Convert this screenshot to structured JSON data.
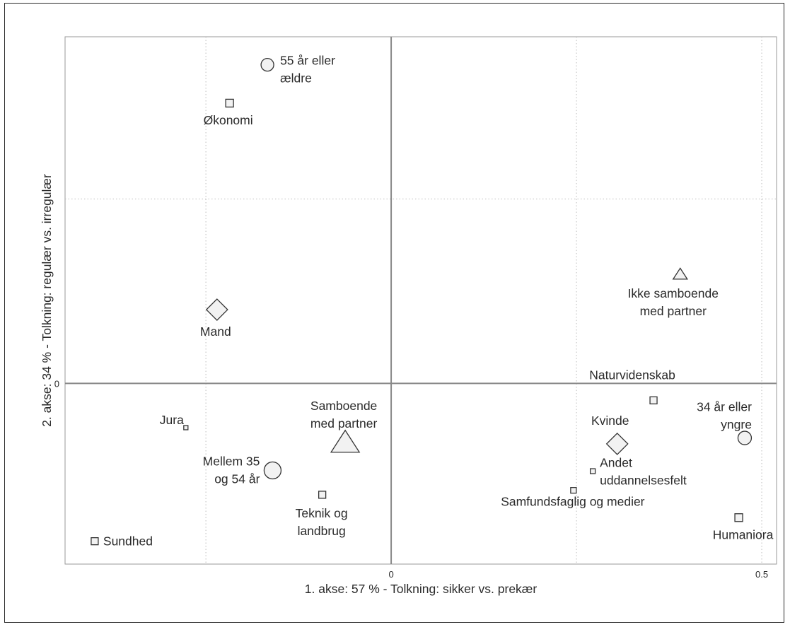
{
  "chart_data": {
    "type": "scatter",
    "xlabel": "1. akse: 57 % - Tolkning: sikker vs. prekær",
    "ylabel": "2. akse: 34 % - Tolkning: regulær vs. irregulær",
    "xlim": [
      -0.44,
      0.52
    ],
    "ylim": [
      -0.245,
      0.47
    ],
    "x_ticks": [
      {
        "value": 0,
        "label": "0"
      },
      {
        "value": 0.5,
        "label": "0.5"
      }
    ],
    "y_ticks": [
      {
        "value": 0,
        "label": "0"
      }
    ],
    "x_gridlines": [
      -0.25,
      0.25,
      0.5
    ],
    "y_gridlines": [
      0.25
    ],
    "grid": "dotted",
    "colors": {
      "marker_fill": "#f2f2f2",
      "marker_stroke": "#333333",
      "axis": "#888888",
      "grid": "#bbbbbb",
      "text": "#2a2a2a"
    },
    "points": [
      {
        "id": "p1",
        "label": [
          "55 år eller",
          "ældre"
        ],
        "shape": "circle",
        "size": 9,
        "x": -0.167,
        "y": 0.432
      },
      {
        "id": "p2",
        "label": [
          "Økonomi"
        ],
        "shape": "square",
        "size": 5.5,
        "x": -0.218,
        "y": 0.38
      },
      {
        "id": "p3",
        "label": [
          "Mand"
        ],
        "shape": "diamond",
        "size": 15,
        "x": -0.235,
        "y": 0.1
      },
      {
        "id": "p4",
        "label": [
          "Jura"
        ],
        "shape": "square",
        "size": 3,
        "x": -0.277,
        "y": -0.06
      },
      {
        "id": "p5",
        "label": [
          "Mellem 35",
          "og 54 år"
        ],
        "shape": "circle",
        "size": 12,
        "x": -0.16,
        "y": -0.118
      },
      {
        "id": "p6",
        "label": [
          "Samboende",
          "med partner"
        ],
        "shape": "triangle",
        "size": 20,
        "x": -0.062,
        "y": -0.082
      },
      {
        "id": "p7",
        "label": [
          "Teknik og",
          "landbrug"
        ],
        "shape": "square",
        "size": 5,
        "x": -0.093,
        "y": -0.151
      },
      {
        "id": "p8",
        "label": [
          "Sundhed"
        ],
        "shape": "square",
        "size": 5,
        "x": -0.4,
        "y": -0.214
      },
      {
        "id": "p9",
        "label": [
          "Ikke samboende",
          "med partner"
        ],
        "shape": "triangle",
        "size": 10,
        "x": 0.39,
        "y": 0.147
      },
      {
        "id": "p10",
        "label": [
          "Naturvidenskab"
        ],
        "shape": "square",
        "size": 5,
        "x": 0.354,
        "y": -0.023
      },
      {
        "id": "p11",
        "label": [
          "34 år eller",
          "yngre"
        ],
        "shape": "circle",
        "size": 9.5,
        "x": 0.477,
        "y": -0.074
      },
      {
        "id": "p12",
        "label": [
          "Kvinde"
        ],
        "shape": "diamond",
        "size": 15,
        "x": 0.305,
        "y": -0.082
      },
      {
        "id": "p13",
        "label": [
          "Andet",
          "uddannelsesfelt"
        ],
        "shape": "square",
        "size": 3.5,
        "x": 0.272,
        "y": -0.119
      },
      {
        "id": "p14",
        "label": [
          "Samfundsfaglig og medier"
        ],
        "shape": "square",
        "size": 4,
        "x": 0.246,
        "y": -0.145
      },
      {
        "id": "p15",
        "label": [
          "Humaniora"
        ],
        "shape": "square",
        "size": 5.5,
        "x": 0.469,
        "y": -0.182
      }
    ]
  }
}
